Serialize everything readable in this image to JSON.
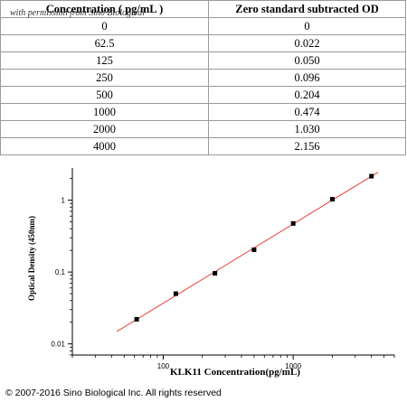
{
  "table": {
    "headers": [
      "Concentration ( pg/mL )",
      "Zero standard subtracted OD"
    ],
    "watermark": "with permission from Sino Biological",
    "rows": [
      [
        "0",
        "0"
      ],
      [
        "62.5",
        "0.022"
      ],
      [
        "125",
        "0.050"
      ],
      [
        "250",
        "0.096"
      ],
      [
        "500",
        "0.204"
      ],
      [
        "1000",
        "0.474"
      ],
      [
        "2000",
        "1.030"
      ],
      [
        "4000",
        "2.156"
      ]
    ]
  },
  "chart_data": {
    "type": "scatter",
    "x_scale": "log",
    "y_scale": "log",
    "xlabel": "KLK11  Concentration(pg/mL)",
    "ylabel": "Optical Density (450nm)",
    "xlim": [
      20,
      6000
    ],
    "ylim": [
      0.007,
      2.8
    ],
    "x_ticks": [
      "100",
      "1000"
    ],
    "y_ticks": [
      "0.01",
      "0.1",
      "1"
    ],
    "points": [
      {
        "x": 62.5,
        "y": 0.022
      },
      {
        "x": 125,
        "y": 0.05
      },
      {
        "x": 250,
        "y": 0.096
      },
      {
        "x": 500,
        "y": 0.204
      },
      {
        "x": 1000,
        "y": 0.474
      },
      {
        "x": 2000,
        "y": 1.03
      },
      {
        "x": 4000,
        "y": 2.156
      }
    ],
    "fit_line": {
      "x_start": 44,
      "x_end": 4500,
      "color": "#e8413b"
    },
    "marker_color": "#000000"
  },
  "footer": {
    "copyright": "© 2007-2016 Sino Biological Inc. All rights reserved"
  }
}
